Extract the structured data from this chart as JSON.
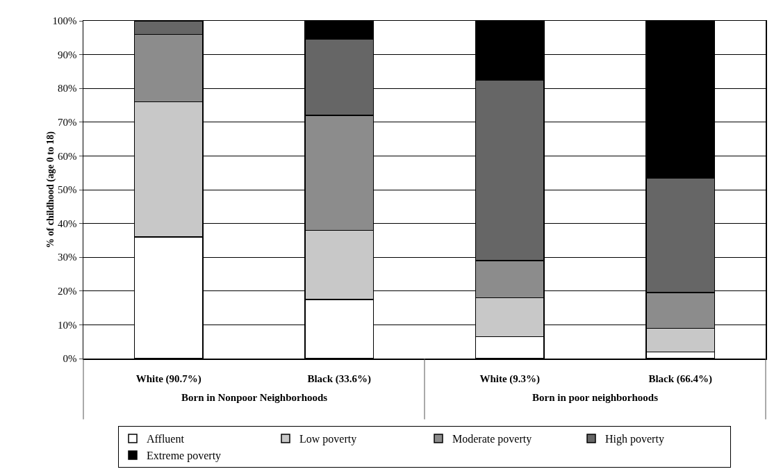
{
  "chart_data": {
    "type": "bar",
    "stacked": true,
    "ylabel": "% of childhood (age 0 to 18)",
    "categories": [
      "White (90.7%)",
      "Black (33.6%)",
      "White (9.3%)",
      "Black (66.4%)"
    ],
    "series": [
      {
        "name": "Affluent",
        "color": "#ffffff",
        "values": [
          36,
          17.5,
          6.5,
          2
        ]
      },
      {
        "name": "Low poverty",
        "color": "#c8c8c8",
        "values": [
          40,
          20.5,
          11.5,
          7
        ]
      },
      {
        "name": "Moderate poverty",
        "color": "#8c8c8c",
        "values": [
          20,
          34,
          11,
          10.5
        ]
      },
      {
        "name": "High poverty",
        "color": "#666666",
        "values": [
          4,
          22.5,
          53.5,
          34
        ]
      },
      {
        "name": "Extreme poverty",
        "color": "#000000",
        "values": [
          0,
          5.5,
          17.5,
          46.5
        ]
      }
    ],
    "ylim": [
      0,
      100
    ],
    "yticks": [
      {
        "value": 0,
        "label": "0%"
      },
      {
        "value": 10,
        "label": "10%"
      },
      {
        "value": 20,
        "label": "20%"
      },
      {
        "value": 30,
        "label": "30%"
      },
      {
        "value": 40,
        "label": "40%"
      },
      {
        "value": 50,
        "label": "50%"
      },
      {
        "value": 60,
        "label": "60%"
      },
      {
        "value": 70,
        "label": "70%"
      },
      {
        "value": 80,
        "label": "80%"
      },
      {
        "value": 90,
        "label": "90%"
      },
      {
        "value": 100,
        "label": "100%"
      }
    ],
    "grid": "y",
    "legend": "bottom",
    "annotations": [
      "Born in Nonpoor Neighborhoods",
      "Born in poor neighborhoods"
    ]
  }
}
